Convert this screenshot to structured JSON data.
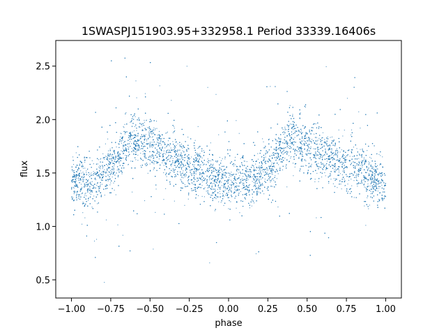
{
  "chart_data": {
    "type": "scatter",
    "title": "1SWASPJ151903.95+332958.1 Period 33339.16406s",
    "xlabel": "phase",
    "ylabel": "flux",
    "xlim": [
      -1.1,
      1.1
    ],
    "ylim": [
      0.33,
      2.74
    ],
    "xticks": [
      -1.0,
      -0.75,
      -0.5,
      -0.25,
      0.0,
      0.25,
      0.5,
      0.75,
      1.0
    ],
    "xtick_labels": [
      "−1.00",
      "−0.75",
      "−0.50",
      "−0.25",
      "0.00",
      "0.25",
      "0.50",
      "0.75",
      "1.00"
    ],
    "yticks": [
      0.5,
      1.0,
      1.5,
      2.0,
      2.5
    ],
    "ytick_labels": [
      "0.5",
      "1.0",
      "1.5",
      "2.0",
      "2.5"
    ],
    "grid": false,
    "marker_color": "#1f77b4",
    "series": [
      {
        "x_range": [
          -1.0,
          1.0
        ],
        "trend_phase": [
          -1.0,
          -0.85,
          -0.75,
          -0.6,
          -0.5,
          -0.25,
          0.0,
          0.15,
          0.25,
          0.4,
          0.5,
          0.75,
          1.0
        ],
        "trend_flux": [
          1.42,
          1.42,
          1.55,
          1.82,
          1.75,
          1.55,
          1.42,
          1.42,
          1.55,
          1.82,
          1.75,
          1.55,
          1.42
        ],
        "core_scatter": 0.12,
        "outlier_range": [
          0.45,
          2.65
        ]
      }
    ]
  }
}
